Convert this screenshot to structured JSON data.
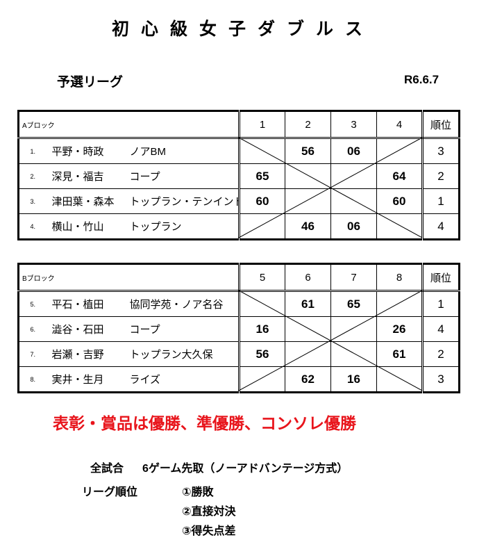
{
  "title": "初心級女子ダブルス",
  "subtitle": "予選リーグ",
  "date": "R6.6.7",
  "rank_header": "順位",
  "blocks": [
    {
      "label": "Aブロック",
      "columns": [
        "1",
        "2",
        "3",
        "4"
      ],
      "rows": [
        {
          "no": "1.",
          "names": "平野・時政",
          "club": "ノアBM",
          "scores": [
            "",
            "56",
            "06",
            ""
          ],
          "rank": "3"
        },
        {
          "no": "2.",
          "names": "深見・福吉",
          "club": "コープ",
          "scores": [
            "65",
            "",
            "",
            "64"
          ],
          "rank": "2"
        },
        {
          "no": "3.",
          "names": "津田葉・森本",
          "club": "トップラン・テンインド",
          "scores": [
            "60",
            "",
            "",
            "60"
          ],
          "rank": "1"
        },
        {
          "no": "4.",
          "names": "横山・竹山",
          "club": "トップラン",
          "scores": [
            "",
            "46",
            "06",
            ""
          ],
          "rank": "4"
        }
      ]
    },
    {
      "label": "Bブロック",
      "columns": [
        "5",
        "6",
        "7",
        "8"
      ],
      "rows": [
        {
          "no": "5.",
          "names": "平石・植田",
          "club": "協同学苑・ノア名谷",
          "scores": [
            "",
            "61",
            "65",
            ""
          ],
          "rank": "1"
        },
        {
          "no": "6.",
          "names": "澁谷・石田",
          "club": "コープ",
          "scores": [
            "16",
            "",
            "",
            "26"
          ],
          "rank": "4"
        },
        {
          "no": "7.",
          "names": "岩瀬・吉野",
          "club": "トップラン大久保",
          "scores": [
            "56",
            "",
            "",
            "61"
          ],
          "rank": "2"
        },
        {
          "no": "8.",
          "names": "実井・生月",
          "club": "ライズ",
          "scores": [
            "",
            "62",
            "16",
            ""
          ],
          "rank": "3"
        }
      ]
    }
  ],
  "award_note": "表彰・賞品は優勝、準優勝、コンソレ優勝",
  "accent_color": "#e8141b",
  "rules": {
    "match_label": "全試合",
    "match_format": "6ゲーム先取（ノーアドバンテージ方式）",
    "ranking_label": "リーグ順位",
    "criteria": [
      "①勝敗",
      "②直接対決",
      "③得失点差"
    ]
  }
}
